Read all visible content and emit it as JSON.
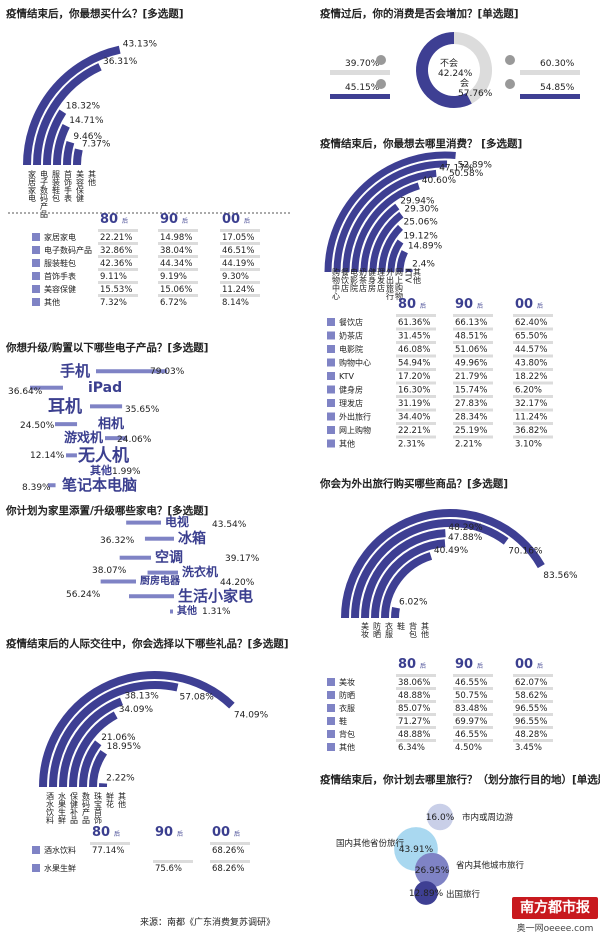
{
  "colors": {
    "accent": "#3e3f93",
    "accent_light": "#7f83c5",
    "track": "#dcdcdc",
    "brand_red": "#c8191e"
  },
  "gen_labels": [
    {
      "num": "80",
      "sfx": "后"
    },
    {
      "num": "90",
      "sfx": "后"
    },
    {
      "num": "00",
      "sfx": "后"
    }
  ],
  "source": "来源：南都《广东消费复苏调研》",
  "brand": {
    "name": "南方都市报",
    "site": "奥一网oeeee.com"
  },
  "chart_data": [
    {
      "id": "buy",
      "type": "bar",
      "title": "疫情结束后，你最想买什么？[多选题]",
      "categories": [
        "家居家电",
        "电子数码产品",
        "服装鞋包",
        "首饰手表",
        "美容保健",
        "其他"
      ],
      "values": [
        43.13,
        36.31,
        18.32,
        14.71,
        9.46,
        7.37
      ],
      "value_labels": [
        "43.13%",
        "36.31%",
        "18.32%",
        "14.71%",
        "9.46%",
        "7.37%"
      ],
      "table": {
        "rows": [
          "家居家电",
          "电子数码产品",
          "服装鞋包",
          "首饰手表",
          "美容保健",
          "其他"
        ],
        "g80": [
          "22.21%",
          "32.86%",
          "42.36%",
          "9.11%",
          "15.53%",
          "7.32%"
        ],
        "g90": [
          "14.98%",
          "38.04%",
          "44.34%",
          "9.19%",
          "15.06%",
          "6.72%"
        ],
        "g00": [
          "17.05%",
          "46.51%",
          "44.19%",
          "9.30%",
          "11.24%",
          "8.14%"
        ]
      }
    },
    {
      "id": "increase",
      "type": "pie",
      "title": "疫情过后，你的消费是否会增加？[单选题]",
      "categories": [
        "不会",
        "会"
      ],
      "values": [
        42.24,
        57.76
      ],
      "value_labels": [
        "42.24%",
        "57.76%"
      ],
      "left": [
        "39.70%",
        "45.15%"
      ],
      "right": [
        "60.30%",
        "54.85%"
      ]
    },
    {
      "id": "electronics",
      "type": "bar",
      "title": "你想升级/购置以下哪些电子产品？[多选题]",
      "categories": [
        "手机",
        "iPad",
        "耳机",
        "相机",
        "游戏机",
        "无人机",
        "其他",
        "笔记本电脑"
      ],
      "values": [
        79.03,
        36.64,
        35.65,
        24.5,
        24.06,
        12.14,
        1.99,
        8.39
      ],
      "value_labels": [
        "79.03%",
        "36.64%",
        "35.65%",
        "24.50%",
        "24.06%",
        "12.14%",
        "1.99%",
        "8.39%"
      ]
    },
    {
      "id": "appliances",
      "type": "bar",
      "title": "你计划为家里添置/升级哪些家电？[多选题]",
      "categories": [
        "电视",
        "冰箱",
        "空调",
        "洗衣机",
        "厨房电器",
        "生活小家电",
        "其他"
      ],
      "values": [
        43.54,
        36.32,
        39.17,
        38.07,
        44.2,
        56.24,
        1.31
      ],
      "value_labels": [
        "43.54%",
        "36.32%",
        "39.17%",
        "38.07%",
        "44.20%",
        "56.24%",
        "1.31%"
      ]
    },
    {
      "id": "gifts",
      "type": "bar",
      "title": "疫情结束后的人际交往中，你会选择以下哪些礼品？[多选题]",
      "categories": [
        "酒水饮料",
        "水果生鲜",
        "保健补品",
        "数码产品",
        "珠宝首饰",
        "鲜花",
        "其他"
      ],
      "values": [
        74.09,
        57.08,
        38.13,
        34.09,
        21.06,
        18.95,
        2.22
      ],
      "value_labels": [
        "74.09%",
        "57.08%",
        "38.13%",
        "34.09%",
        "21.06%",
        "18.95%",
        "2.22%"
      ],
      "table": {
        "rows": [
          "酒水饮料",
          "水果生鲜"
        ],
        "g80": [
          "77.14%",
          ""
        ],
        "g90": [
          "",
          "75.6%"
        ],
        "g00": [
          "68.26%",
          "68.26%"
        ]
      }
    },
    {
      "id": "places",
      "type": "bar",
      "title": "疫情结束后，你最想去哪里消费？ [多选题]",
      "categories": [
        "购物中心",
        "餐饮店",
        "电影院",
        "奶茶店",
        "健身房",
        "理发店",
        "外出旅行",
        "网上购物",
        "KTV",
        "其他"
      ],
      "values": [
        52.89,
        50.58,
        47.17,
        40.6,
        29.94,
        29.3,
        25.06,
        19.12,
        14.89,
        2.4
      ],
      "value_labels": [
        "52.89%",
        "50.58%",
        "47.17%",
        "40.60%",
        "29.94%",
        "29.30%",
        "25.06%",
        "19.12%",
        "14.89%",
        "2.4%"
      ],
      "table": {
        "rows": [
          "餐饮店",
          "奶茶店",
          "电影院",
          "购物中心",
          "KTV",
          "健身房",
          "理发店",
          "外出旅行",
          "网上购物",
          "其他"
        ],
        "g80": [
          "61.36%",
          "31.45%",
          "46.08%",
          "54.94%",
          "17.20%",
          "16.30%",
          "31.19%",
          "34.40%",
          "22.21%",
          "2.31%"
        ],
        "g90": [
          "66.13%",
          "48.51%",
          "51.06%",
          "49.96%",
          "21.79%",
          "15.74%",
          "27.83%",
          "28.34%",
          "25.19%",
          "2.21%"
        ],
        "g00": [
          "62.40%",
          "65.50%",
          "44.57%",
          "43.80%",
          "18.22%",
          "6.20%",
          "32.17%",
          "11.24%",
          "36.82%",
          "3.10%"
        ]
      }
    },
    {
      "id": "travel_goods",
      "type": "bar",
      "title": "你会为外出旅行购买哪些商品？[多选题]",
      "categories": [
        "美妆",
        "防晒",
        "衣服",
        "鞋",
        "背包",
        "其他"
      ],
      "values": [
        83.56,
        70.16,
        47.88,
        48.29,
        40.49,
        6.02
      ],
      "value_labels": [
        "83.56%",
        "70.16%",
        "47.88%",
        "48.29%",
        "40.49%",
        "6.02%"
      ],
      "table": {
        "rows": [
          "美妆",
          "防晒",
          "衣服",
          "鞋",
          "背包",
          "其他"
        ],
        "g80": [
          "38.06%",
          "48.88%",
          "85.07%",
          "71.27%",
          "48.88%",
          "6.34%"
        ],
        "g90": [
          "46.55%",
          "50.75%",
          "83.48%",
          "69.97%",
          "46.55%",
          "4.50%"
        ],
        "g00": [
          "62.07%",
          "58.62%",
          "96.55%",
          "96.55%",
          "48.28%",
          "3.45%"
        ]
      }
    },
    {
      "id": "destination",
      "type": "bubble",
      "title": "疫情结束后，你计划去哪里旅行？（划分旅行目的地）[单选题]",
      "categories": [
        "市内或周边游",
        "国内其他省份旅行",
        "省内其他城市旅行",
        "出国旅行"
      ],
      "values": [
        16.0,
        43.91,
        26.95,
        12.89
      ],
      "value_labels": [
        "16.0%",
        "43.91%",
        "26.95%",
        "12.89%"
      ]
    }
  ]
}
